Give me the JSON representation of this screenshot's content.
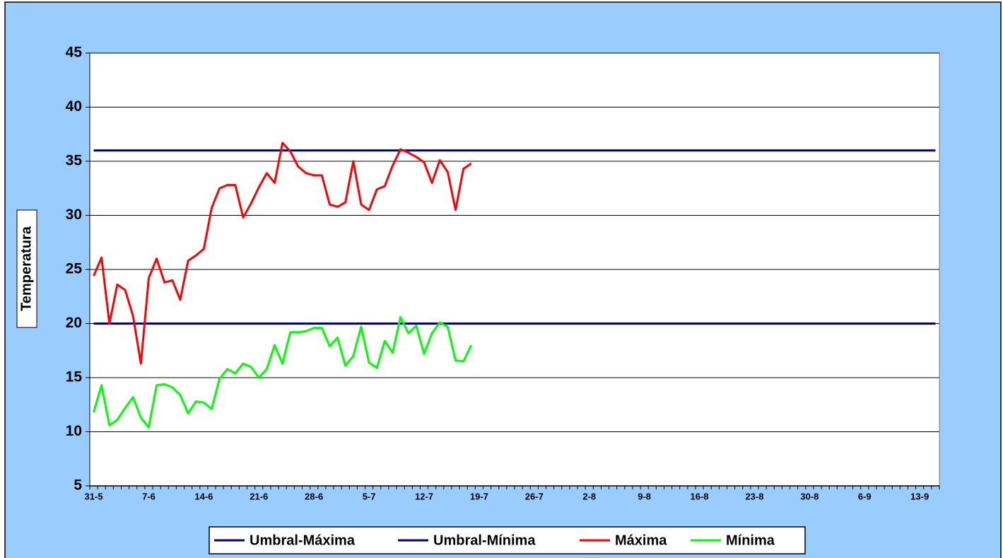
{
  "chart_data": {
    "type": "line",
    "y_label": "Temperatura",
    "categories": [
      "31-5",
      null,
      null,
      null,
      null,
      null,
      null,
      "7-6",
      null,
      null,
      null,
      null,
      null,
      null,
      "14-6",
      null,
      null,
      null,
      null,
      null,
      null,
      "21-6",
      null,
      null,
      null,
      null,
      null,
      null,
      "28-6",
      null,
      null,
      null,
      null,
      null,
      null,
      "5-7",
      null,
      null,
      null,
      null,
      null,
      null,
      "12-7",
      null,
      null,
      null,
      null,
      null,
      null,
      "19-7",
      null,
      null,
      null,
      null,
      null,
      null,
      "26-7",
      null,
      null,
      null,
      null,
      null,
      null,
      "2-8",
      null,
      null,
      null,
      null,
      null,
      null,
      "9-8",
      null,
      null,
      null,
      null,
      null,
      null,
      "16-8",
      null,
      null,
      null,
      null,
      null,
      null,
      "23-8",
      null,
      null,
      null,
      null,
      null,
      null,
      "30-8",
      null,
      null,
      null,
      null,
      null,
      null,
      "6-9",
      null,
      null,
      null,
      null,
      null,
      null,
      "13-9",
      null,
      null
    ],
    "series": [
      {
        "name": "Umbral-Máxima",
        "color": "#000080",
        "values": [
          36,
          36,
          36,
          36,
          36,
          36,
          36,
          36,
          36,
          36,
          36,
          36,
          36,
          36,
          36,
          36,
          36,
          36,
          36,
          36,
          36,
          36,
          36,
          36,
          36,
          36,
          36,
          36,
          36,
          36,
          36,
          36,
          36,
          36,
          36,
          36,
          36,
          36,
          36,
          36,
          36,
          36,
          36,
          36,
          36,
          36,
          36,
          36,
          36,
          36,
          36,
          36,
          36,
          36,
          36,
          36,
          36,
          36,
          36,
          36,
          36,
          36,
          36,
          36,
          36,
          36,
          36,
          36,
          36,
          36,
          36,
          36,
          36,
          36,
          36,
          36,
          36,
          36,
          36,
          36,
          36,
          36,
          36,
          36,
          36,
          36,
          36,
          36,
          36,
          36,
          36,
          36,
          36,
          36,
          36,
          36,
          36,
          36,
          36,
          36,
          36,
          36,
          36,
          36,
          36,
          36,
          36,
          36
        ]
      },
      {
        "name": "Umbral-Mínima",
        "color": "#000080",
        "values": [
          20,
          20,
          20,
          20,
          20,
          20,
          20,
          20,
          20,
          20,
          20,
          20,
          20,
          20,
          20,
          20,
          20,
          20,
          20,
          20,
          20,
          20,
          20,
          20,
          20,
          20,
          20,
          20,
          20,
          20,
          20,
          20,
          20,
          20,
          20,
          20,
          20,
          20,
          20,
          20,
          20,
          20,
          20,
          20,
          20,
          20,
          20,
          20,
          20,
          20,
          20,
          20,
          20,
          20,
          20,
          20,
          20,
          20,
          20,
          20,
          20,
          20,
          20,
          20,
          20,
          20,
          20,
          20,
          20,
          20,
          20,
          20,
          20,
          20,
          20,
          20,
          20,
          20,
          20,
          20,
          20,
          20,
          20,
          20,
          20,
          20,
          20,
          20,
          20,
          20,
          20,
          20,
          20,
          20,
          20,
          20,
          20,
          20,
          20,
          20,
          20,
          20,
          20,
          20,
          20,
          20,
          20,
          20
        ]
      },
      {
        "name": "Máxima",
        "color": "#ff0000",
        "values": [
          24.4,
          26.1,
          20.0,
          23.6,
          23.1,
          20.7,
          16.3,
          24.2,
          26.0,
          23.8,
          24.0,
          22.2,
          25.8,
          26.3,
          26.9,
          30.7,
          32.5,
          32.8,
          32.8,
          29.8,
          31.1,
          32.6,
          33.9,
          33.0,
          36.7,
          35.9,
          34.5,
          33.9,
          33.7,
          33.7,
          31.0,
          30.8,
          31.2,
          35.0,
          31.0,
          30.5,
          32.4,
          32.7,
          34.6,
          36.1,
          35.8,
          35.4,
          34.9,
          33.0,
          35.1,
          34.0,
          30.5,
          34.3,
          34.8,
          null,
          null,
          null,
          null,
          null,
          null,
          null,
          null,
          null,
          null,
          null,
          null,
          null,
          null,
          null,
          null,
          null,
          null,
          null,
          null,
          null,
          null,
          null,
          null,
          null,
          null,
          null,
          null,
          null,
          null,
          null,
          null,
          null,
          null,
          null,
          null,
          null,
          null,
          null,
          null,
          null,
          null,
          null,
          null,
          null,
          null,
          null,
          null,
          null,
          null,
          null,
          null,
          null,
          null,
          null,
          null,
          null,
          null,
          null
        ]
      },
      {
        "name": "Mínima",
        "color": "#00ff00",
        "values": [
          11.8,
          14.3,
          10.6,
          11.1,
          12.2,
          13.2,
          11.3,
          10.4,
          14.3,
          14.4,
          14.1,
          13.4,
          11.7,
          12.8,
          12.7,
          12.1,
          14.9,
          15.8,
          15.4,
          16.3,
          16.0,
          15.0,
          15.8,
          18.0,
          16.3,
          19.2,
          19.2,
          19.3,
          19.6,
          19.6,
          17.9,
          18.7,
          16.1,
          17.0,
          19.7,
          16.4,
          15.9,
          18.4,
          17.3,
          20.6,
          19.1,
          19.8,
          17.2,
          19.1,
          20.1,
          19.7,
          16.6,
          16.5,
          18.0,
          null,
          null,
          null,
          null,
          null,
          null,
          null,
          null,
          null,
          null,
          null,
          null,
          null,
          null,
          null,
          null,
          null,
          null,
          null,
          null,
          null,
          null,
          null,
          null,
          null,
          null,
          null,
          null,
          null,
          null,
          null,
          null,
          null,
          null,
          null,
          null,
          null,
          null,
          null,
          null,
          null,
          null,
          null,
          null,
          null,
          null,
          null,
          null,
          null,
          null,
          null,
          null,
          null,
          null,
          null,
          null,
          null,
          null,
          null
        ]
      }
    ],
    "ylim": [
      5,
      45
    ],
    "yticks": [
      5,
      10,
      15,
      20,
      25,
      30,
      35,
      40,
      45
    ],
    "grid": true,
    "legend": "bottom"
  }
}
